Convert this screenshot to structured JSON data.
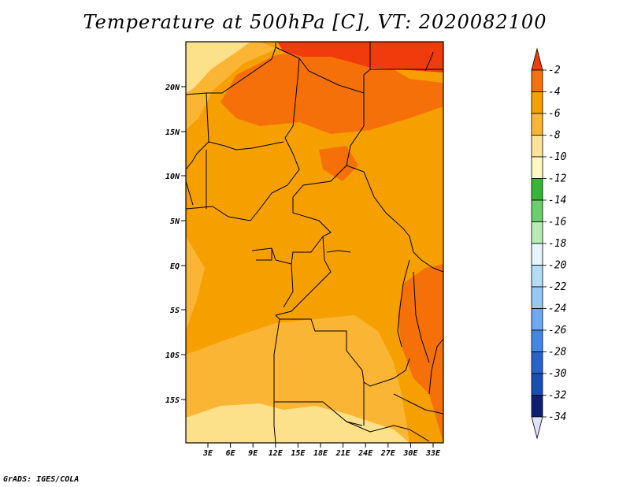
{
  "title": "Temperature at 500hPa [C], VT: 2020082100",
  "credit": "GrADS: IGES/COLA",
  "map": {
    "lat_labels": [
      "20N",
      "15N",
      "10N",
      "5N",
      "EQ",
      "5S",
      "10S",
      "15S"
    ],
    "lon_labels": [
      "3E",
      "6E",
      "9E",
      "12E",
      "15E",
      "18E",
      "21E",
      "24E",
      "27E",
      "30E",
      "33E"
    ],
    "field_colors": {
      "-2_to_-4": "#f03c0c",
      "-4_to_-6": "#f6700a",
      "-6_to_-8": "#f6a000",
      "-8_to_-10": "#fab534",
      "-10_to_-12": "#fde08a"
    }
  },
  "colorbar": {
    "labels": [
      "-2",
      "-4",
      "-6",
      "-8",
      "-10",
      "-12",
      "-14",
      "-16",
      "-18",
      "-20",
      "-22",
      "-24",
      "-26",
      "-28",
      "-30",
      "-32",
      "-34"
    ],
    "colors": [
      "#f03c0c",
      "#f6700a",
      "#f6a000",
      "#fab534",
      "#fee49a",
      "#fff8c0",
      "#35b63a",
      "#6ccf6c",
      "#b8ecb4",
      "#e4f6fc",
      "#b4dcf6",
      "#96c8f4",
      "#6eaaf0",
      "#4486e6",
      "#2a62cc",
      "#164fb5",
      "#0e1f70",
      "#e0e0f8"
    ],
    "top_triangle_color": "#f03c0c",
    "bottom_triangle_color": "#e0e0f8"
  }
}
